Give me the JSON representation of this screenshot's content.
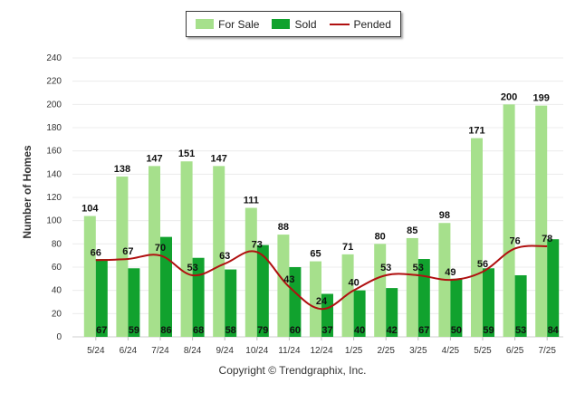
{
  "legend": {
    "for_sale": "For Sale",
    "sold": "Sold",
    "pended": "Pended"
  },
  "copyright": "Copyright © Trendgraphix, Inc.",
  "colors": {
    "for_sale": "#a6e08c",
    "sold": "#11a22e",
    "pended": "#b01010"
  },
  "chart_data": {
    "type": "bar",
    "ylabel": "Number of Homes",
    "ylim": [
      0,
      240
    ],
    "yticks": [
      0,
      20,
      40,
      60,
      80,
      100,
      120,
      140,
      160,
      180,
      200,
      220,
      240
    ],
    "grid": true,
    "legend_position": "top-center",
    "categories": [
      "5/24",
      "6/24",
      "7/24",
      "8/24",
      "9/24",
      "10/24",
      "11/24",
      "12/24",
      "1/25",
      "2/25",
      "3/25",
      "4/25",
      "5/25",
      "6/25",
      "7/25"
    ],
    "series": [
      {
        "name": "For Sale",
        "kind": "bar",
        "values": [
          104,
          138,
          147,
          151,
          147,
          111,
          88,
          65,
          71,
          80,
          85,
          98,
          171,
          200,
          199
        ]
      },
      {
        "name": "Sold",
        "kind": "bar",
        "values": [
          67,
          59,
          86,
          68,
          58,
          79,
          60,
          37,
          40,
          42,
          67,
          50,
          59,
          53,
          84
        ]
      },
      {
        "name": "Pended",
        "kind": "line",
        "values": [
          66,
          67,
          70,
          53,
          63,
          73,
          43,
          24,
          40,
          53,
          53,
          49,
          56,
          76,
          78
        ]
      }
    ]
  }
}
